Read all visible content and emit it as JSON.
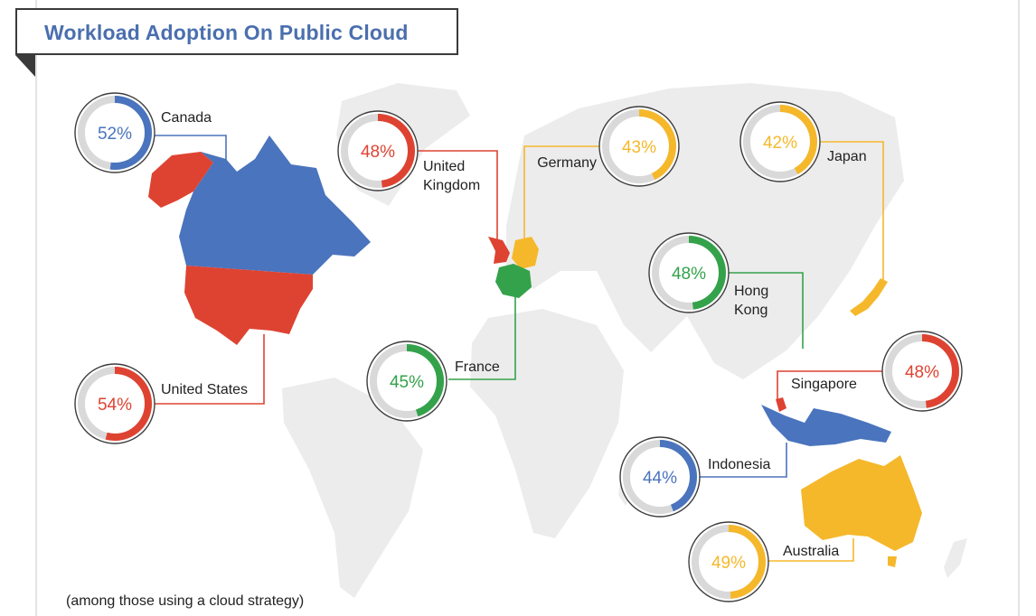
{
  "title": "Workload Adoption On Public Cloud",
  "footnote": "(among those using a cloud strategy)",
  "colors": {
    "blue": "#4a74bd",
    "red": "#de4332",
    "yellow": "#f5b82b",
    "green": "#34a24a",
    "track": "#d9d9d9",
    "land": "#ececec"
  },
  "markers": [
    {
      "country": "Canada",
      "label_lines": [
        "Canada"
      ],
      "value_text": "52%",
      "value": 52,
      "color": "blue"
    },
    {
      "country": "United States",
      "label_lines": [
        "United States"
      ],
      "value_text": "54%",
      "value": 54,
      "color": "red"
    },
    {
      "country": "United Kingdom",
      "label_lines": [
        "United",
        "Kingdom"
      ],
      "value_text": "48%",
      "value": 48,
      "color": "red"
    },
    {
      "country": "Germany",
      "label_lines": [
        "Germany"
      ],
      "value_text": "43%",
      "value": 43,
      "color": "yellow"
    },
    {
      "country": "Japan",
      "label_lines": [
        "Japan"
      ],
      "value_text": "42%",
      "value": 42,
      "color": "yellow"
    },
    {
      "country": "Hong Kong",
      "label_lines": [
        "Hong",
        "Kong"
      ],
      "value_text": "48%",
      "value": 48,
      "color": "green"
    },
    {
      "country": "France",
      "label_lines": [
        "France"
      ],
      "value_text": "45%",
      "value": 45,
      "color": "green"
    },
    {
      "country": "Singapore",
      "label_lines": [
        "Singapore"
      ],
      "value_text": "48%",
      "value": 48,
      "color": "red"
    },
    {
      "country": "Indonesia",
      "label_lines": [
        "Indonesia"
      ],
      "value_text": "44%",
      "value": 44,
      "color": "blue"
    },
    {
      "country": "Australia",
      "label_lines": [
        "Australia"
      ],
      "value_text": "49%",
      "value": 49,
      "color": "yellow"
    }
  ]
}
